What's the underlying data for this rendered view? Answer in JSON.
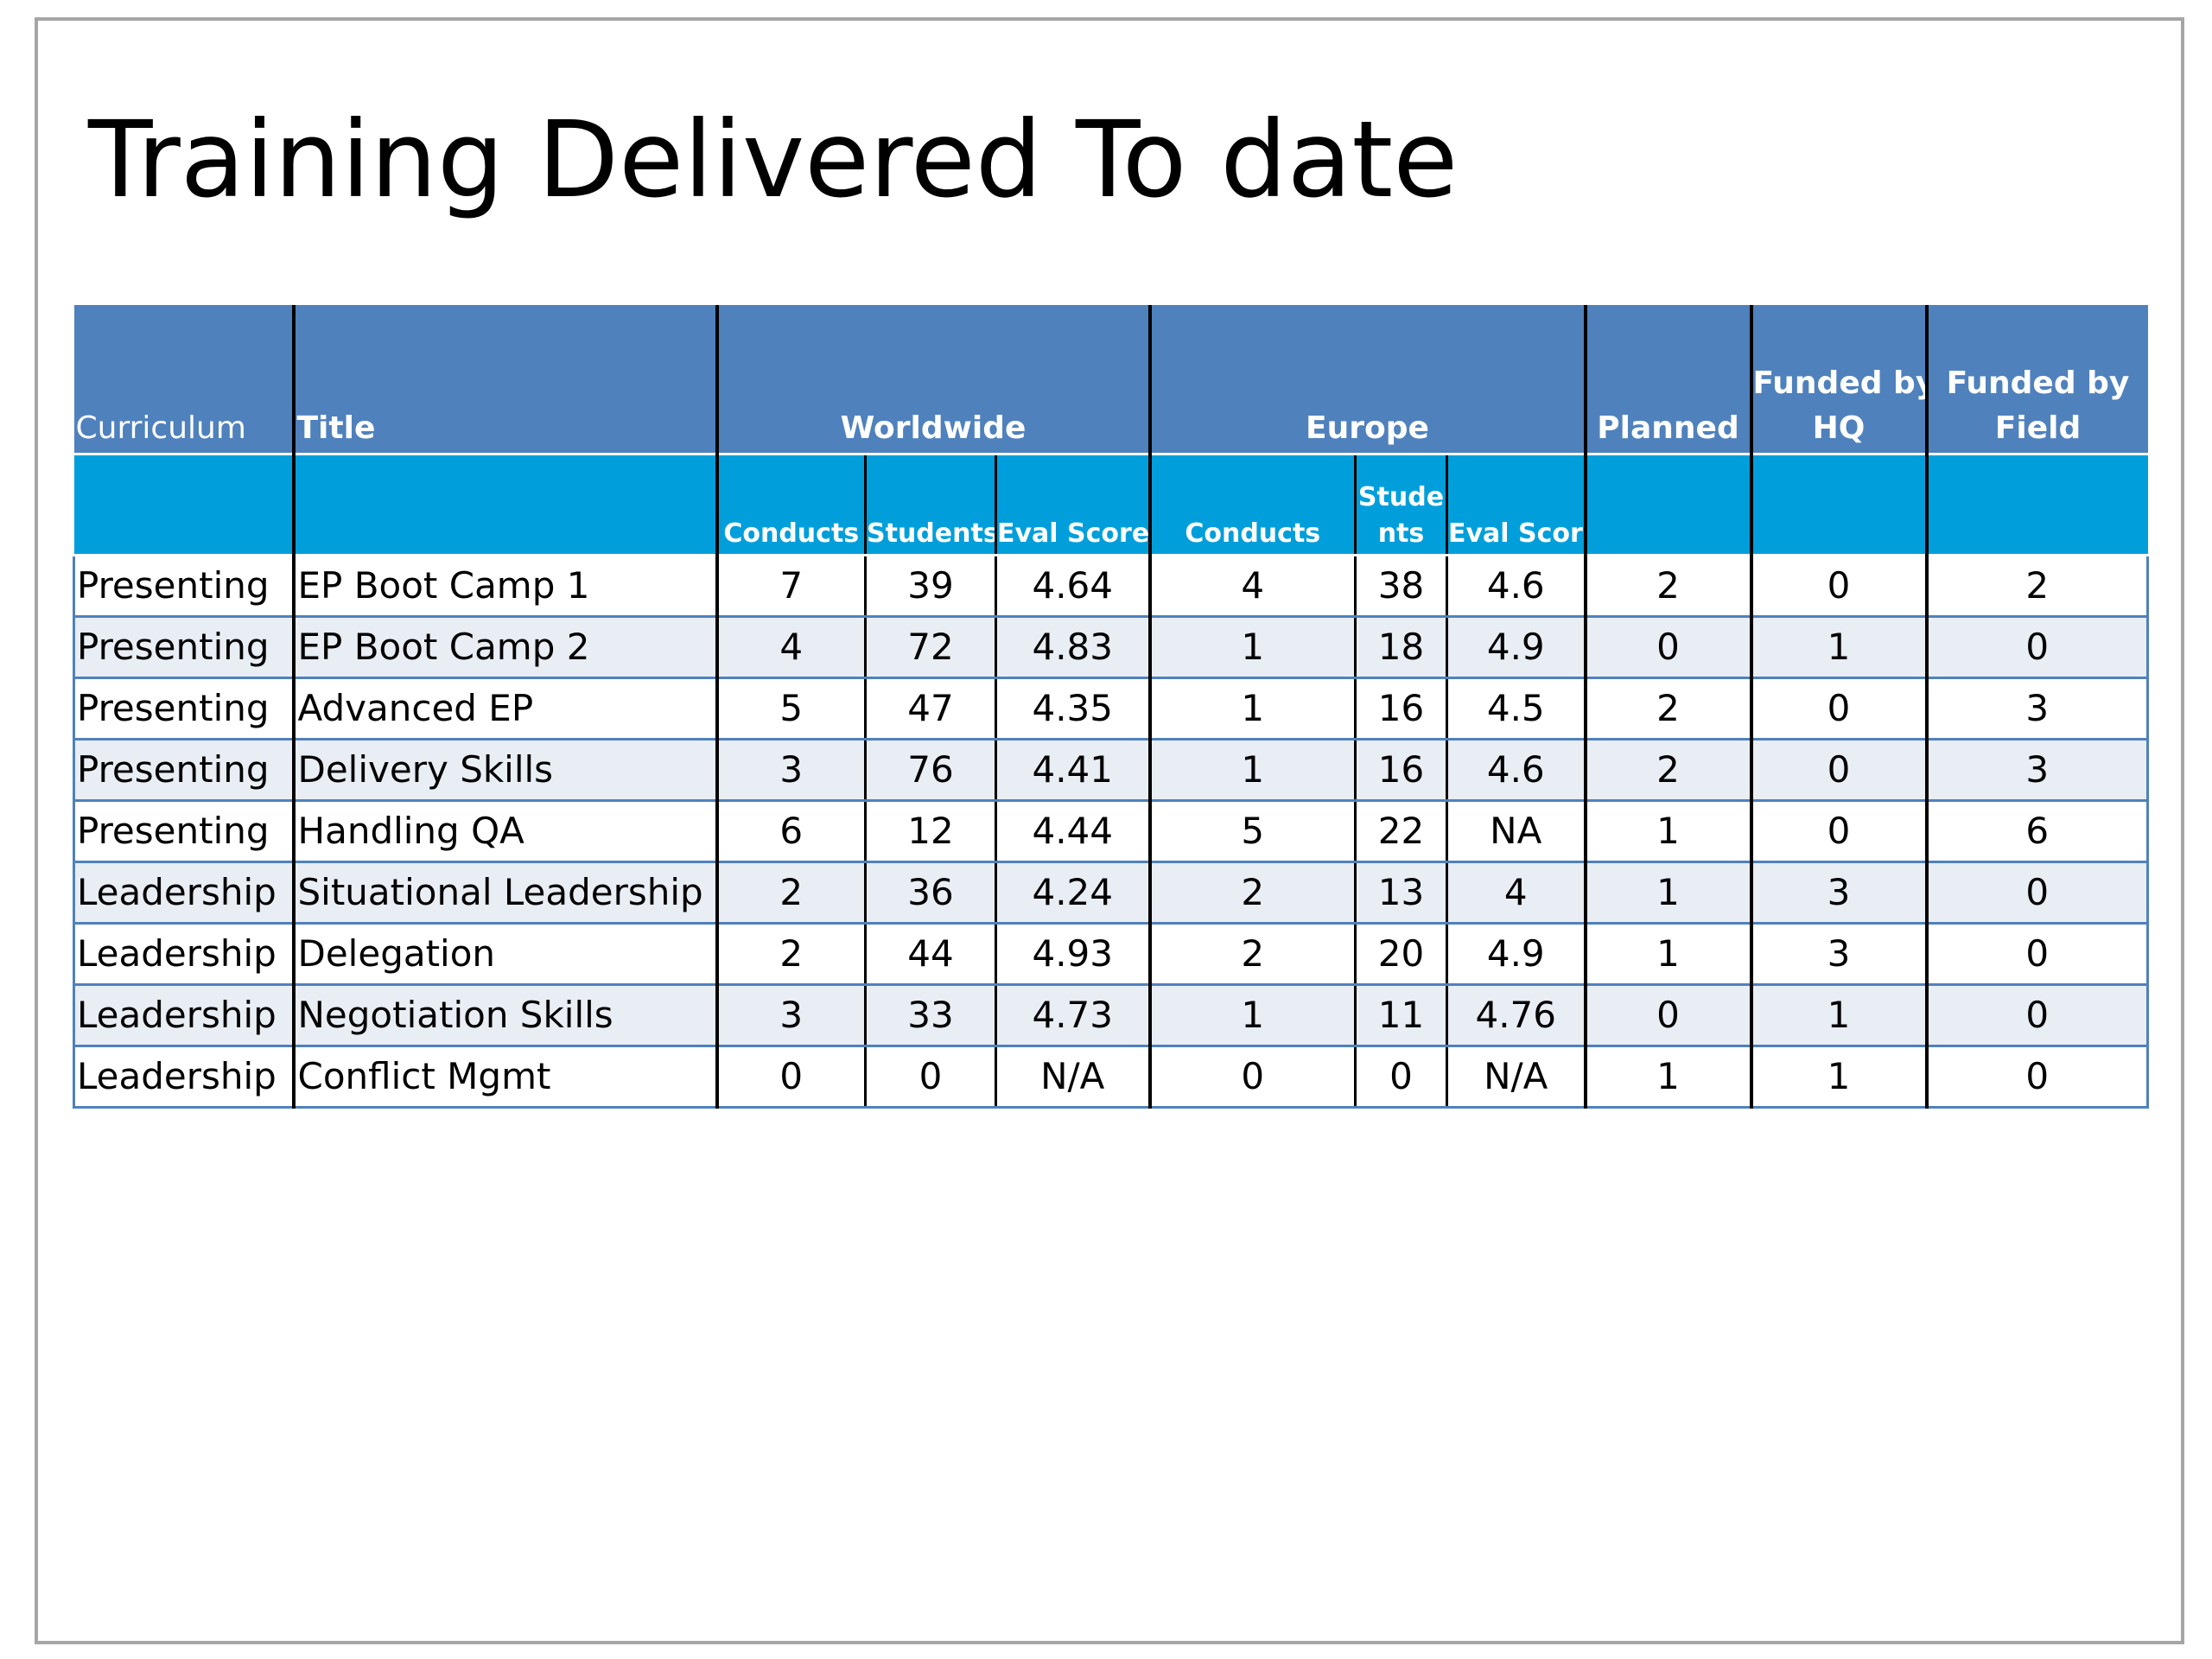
{
  "slide": {
    "title": "Training Delivered To date"
  },
  "table": {
    "header": {
      "curriculum": "Curriculum",
      "title": "Title",
      "worldwide": "Worldwide",
      "europe": "Europe",
      "planned": "Planned",
      "funded_hq_line1": "Funded by",
      "funded_hq_line2": "HQ",
      "funded_field_line1": "Funded by",
      "funded_field_line2": "Field"
    },
    "subheader": {
      "ww_conducts": "Conducts",
      "ww_students": "Students",
      "ww_eval": "Eval Score",
      "eu_conducts": "Conducts",
      "eu_students_line1": "Stude",
      "eu_students_line2": "nts",
      "eu_eval": "Eval Score"
    },
    "rows": [
      {
        "curriculum": "Presenting",
        "title": "EP Boot Camp 1",
        "ww_conducts": "7",
        "ww_students": "39",
        "ww_eval": "4.64",
        "eu_conducts": "4",
        "eu_students": "38",
        "eu_eval": "4.6",
        "planned": "2",
        "funded_hq": "0",
        "funded_field": "2"
      },
      {
        "curriculum": "Presenting",
        "title": "EP Boot Camp 2",
        "ww_conducts": "4",
        "ww_students": "72",
        "ww_eval": "4.83",
        "eu_conducts": "1",
        "eu_students": "18",
        "eu_eval": "4.9",
        "planned": "0",
        "funded_hq": "1",
        "funded_field": "0"
      },
      {
        "curriculum": "Presenting",
        "title": "Advanced EP",
        "ww_conducts": "5",
        "ww_students": "47",
        "ww_eval": "4.35",
        "eu_conducts": "1",
        "eu_students": "16",
        "eu_eval": "4.5",
        "planned": "2",
        "funded_hq": "0",
        "funded_field": "3"
      },
      {
        "curriculum": "Presenting",
        "title": "Delivery Skills",
        "ww_conducts": "3",
        "ww_students": "76",
        "ww_eval": "4.41",
        "eu_conducts": "1",
        "eu_students": "16",
        "eu_eval": "4.6",
        "planned": "2",
        "funded_hq": "0",
        "funded_field": "3"
      },
      {
        "curriculum": "Presenting",
        "title": "Handling QA",
        "ww_conducts": "6",
        "ww_students": "12",
        "ww_eval": "4.44",
        "eu_conducts": "5",
        "eu_students": "22",
        "eu_eval": "NA",
        "planned": "1",
        "funded_hq": "0",
        "funded_field": "6"
      },
      {
        "curriculum": "Leadership",
        "title": "Situational Leadership",
        "ww_conducts": "2",
        "ww_students": "36",
        "ww_eval": "4.24",
        "eu_conducts": "2",
        "eu_students": "13",
        "eu_eval": "4",
        "planned": "1",
        "funded_hq": "3",
        "funded_field": "0"
      },
      {
        "curriculum": "Leadership",
        "title": "Delegation",
        "ww_conducts": "2",
        "ww_students": "44",
        "ww_eval": "4.93",
        "eu_conducts": "2",
        "eu_students": "20",
        "eu_eval": "4.9",
        "planned": "1",
        "funded_hq": "3",
        "funded_field": "0"
      },
      {
        "curriculum": "Leadership",
        "title": "Negotiation Skills",
        "ww_conducts": "3",
        "ww_students": "33",
        "ww_eval": "4.73",
        "eu_conducts": "1",
        "eu_students": "11",
        "eu_eval": "4.76",
        "planned": "0",
        "funded_hq": "1",
        "funded_field": "0"
      },
      {
        "curriculum": "Leadership",
        "title": "Conflict Mgmt",
        "ww_conducts": "0",
        "ww_students": "0",
        "ww_eval": "N/A",
        "eu_conducts": "0",
        "eu_students": "0",
        "eu_eval": "N/A",
        "planned": "1",
        "funded_hq": "1",
        "funded_field": "0"
      }
    ]
  },
  "colors": {
    "header_primary": "#4f81bd",
    "header_secondary": "#009fdb",
    "row_band": "#e9edf4",
    "frame_border": "#a6a6a6"
  }
}
